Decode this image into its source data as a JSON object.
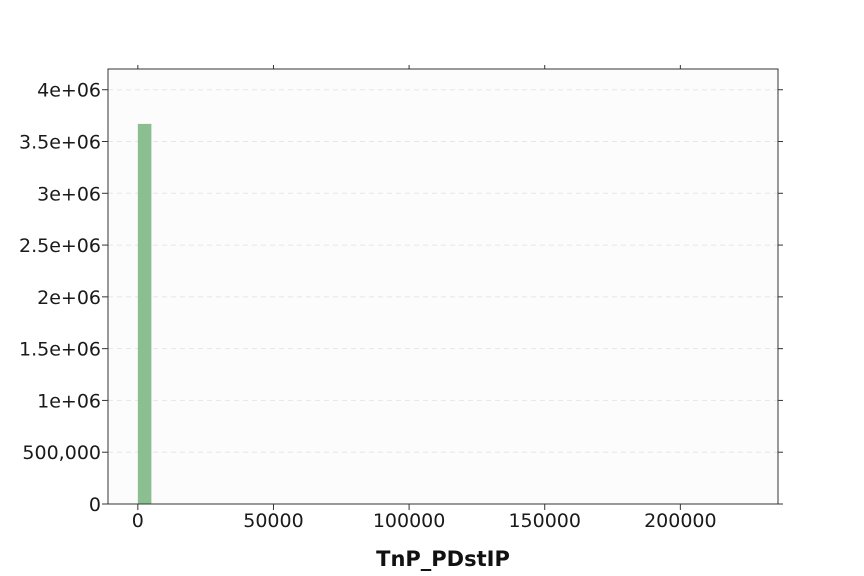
{
  "chart_data": {
    "type": "bar",
    "title": "",
    "xlabel": "TnP_PDstIP",
    "ylabel": "",
    "bins": [
      {
        "x0": 0,
        "x1": 5000,
        "value": 3670000
      }
    ],
    "xlim": [
      -11000,
      236000
    ],
    "ylim": [
      0,
      4200000
    ],
    "xticks": [
      {
        "value": 0,
        "label": "0"
      },
      {
        "value": 50000,
        "label": "50000"
      },
      {
        "value": 100000,
        "label": "100000"
      },
      {
        "value": 150000,
        "label": "150000"
      },
      {
        "value": 200000,
        "label": "200000"
      }
    ],
    "yticks": [
      {
        "value": 0,
        "label": "0"
      },
      {
        "value": 500000,
        "label": "500,000"
      },
      {
        "value": 1000000,
        "label": "1e+06"
      },
      {
        "value": 1500000,
        "label": "1.5e+06"
      },
      {
        "value": 2000000,
        "label": "2e+06"
      },
      {
        "value": 2500000,
        "label": "2.5e+06"
      },
      {
        "value": 3000000,
        "label": "3e+06"
      },
      {
        "value": 3500000,
        "label": "3.5e+06"
      },
      {
        "value": 4000000,
        "label": "4e+06"
      }
    ],
    "grid": "horizontal dashed",
    "bar_color": "#8bbf91",
    "plot_background": "#fcfcfc"
  }
}
